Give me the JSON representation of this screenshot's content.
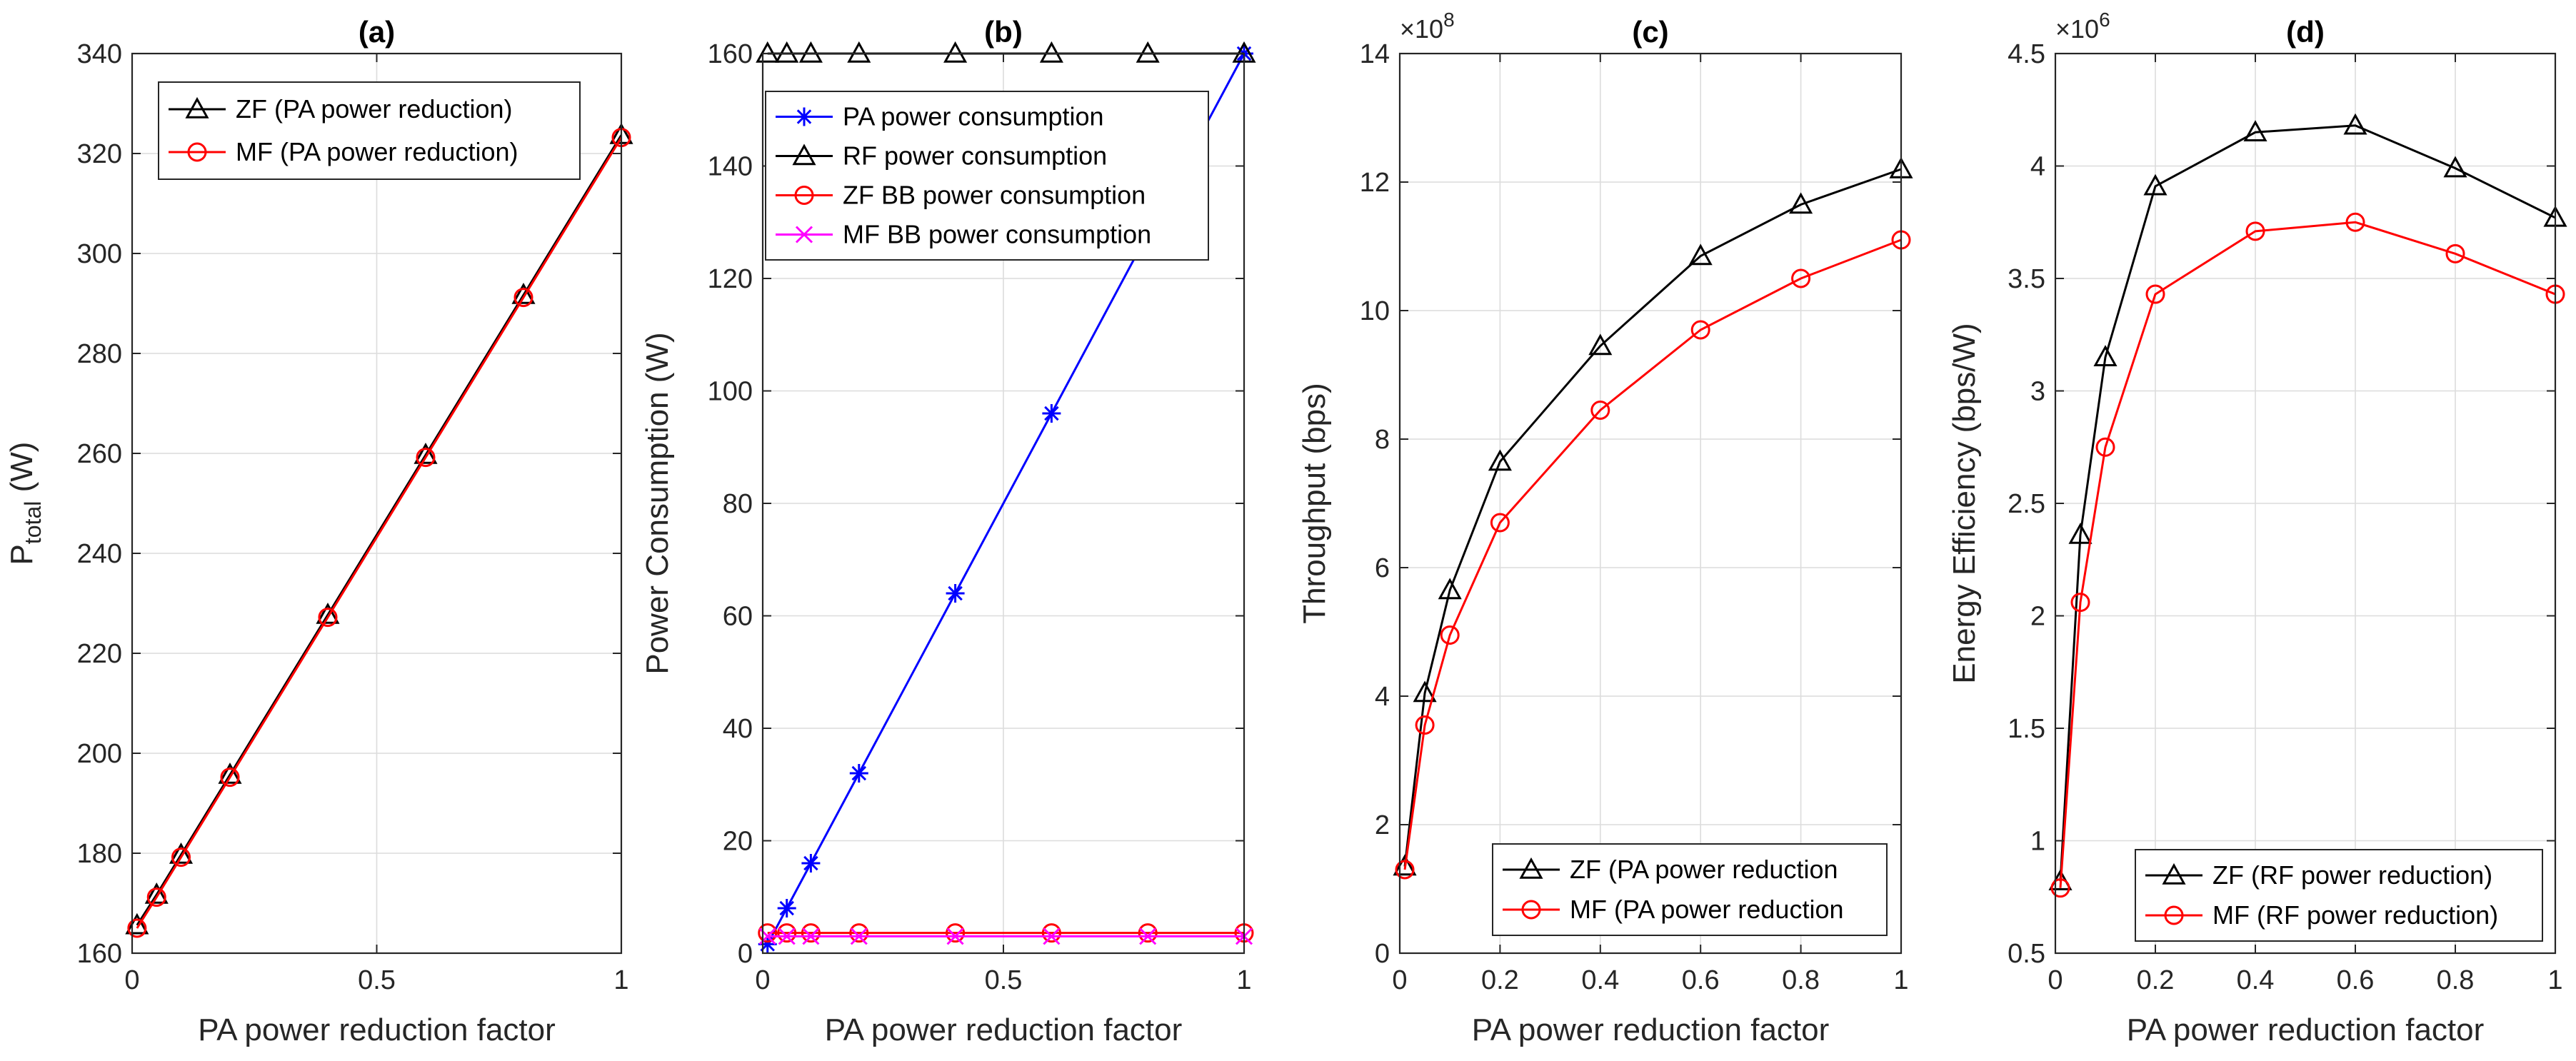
{
  "chart_data": [
    {
      "type": "line",
      "title": "(a)",
      "xlabel": "PA power reduction factor",
      "ylabel_main": "P",
      "ylabel_sub": "total",
      "ylabel_unit": " (W)",
      "xlim": [
        0,
        1
      ],
      "ylim": [
        160,
        340
      ],
      "xticks": [
        0,
        0.5,
        1
      ],
      "xtick_labels": [
        "0",
        "0.5",
        "1"
      ],
      "yticks": [
        160,
        180,
        200,
        220,
        240,
        260,
        280,
        300,
        320,
        340
      ],
      "ytick_labels": [
        "160",
        "180",
        "200",
        "220",
        "240",
        "260",
        "280",
        "300",
        "320",
        "340"
      ],
      "grid": true,
      "legend_position": "top-left",
      "x": [
        0.01,
        0.05,
        0.1,
        0.2,
        0.4,
        0.6,
        0.8,
        1
      ],
      "series": [
        {
          "name": "ZF (PA power reduction)",
          "color": "#000000",
          "marker": "triangle",
          "values": [
            165.6,
            171.7,
            179.7,
            195.7,
            227.7,
            259.7,
            291.7,
            323.7
          ]
        },
        {
          "name": "MF (PA power reduction)",
          "color": "#ff0000",
          "marker": "circle",
          "values": [
            165.0,
            171.2,
            179.2,
            195.2,
            227.2,
            259.2,
            291.2,
            323.2
          ]
        }
      ]
    },
    {
      "type": "line",
      "title": "(b)",
      "xlabel": "PA power reduction factor",
      "ylabel": "Power Consumption (W)",
      "xlim": [
        0,
        1
      ],
      "ylim": [
        0,
        160
      ],
      "xticks": [
        0,
        0.5,
        1
      ],
      "xtick_labels": [
        "0",
        "0.5",
        "1"
      ],
      "yticks": [
        0,
        20,
        40,
        60,
        80,
        100,
        120,
        140,
        160
      ],
      "ytick_labels": [
        "0",
        "20",
        "40",
        "60",
        "80",
        "100",
        "120",
        "140",
        "160"
      ],
      "grid": true,
      "legend_position": "top-left",
      "x": [
        0.01,
        0.05,
        0.1,
        0.2,
        0.4,
        0.6,
        0.8,
        1
      ],
      "series": [
        {
          "name": "PA power consumption",
          "color": "#0000ff",
          "marker": "asterisk",
          "values": [
            1.6,
            8,
            16,
            32,
            64,
            96,
            128,
            160
          ]
        },
        {
          "name": "RF power consumption",
          "color": "#000000",
          "marker": "triangle",
          "values": [
            160,
            160,
            160,
            160,
            160,
            160,
            160,
            160
          ]
        },
        {
          "name": "ZF BB power consumption",
          "color": "#ff0000",
          "marker": "circle",
          "values": [
            3.6,
            3.6,
            3.6,
            3.6,
            3.6,
            3.6,
            3.6,
            3.6
          ]
        },
        {
          "name": "MF BB power consumption",
          "color": "#ff00ff",
          "marker": "x",
          "values": [
            3.0,
            3.0,
            3.0,
            3.0,
            3.0,
            3.0,
            3.0,
            3.0
          ]
        }
      ]
    },
    {
      "type": "line",
      "title": "(c)",
      "xlabel": "PA power reduction factor",
      "ylabel": "Throughput (bps)",
      "exponent_base": "×10",
      "exponent_power": "8",
      "xlim": [
        0,
        1
      ],
      "ylim": [
        0,
        14
      ],
      "xticks": [
        0,
        0.2,
        0.4,
        0.6,
        0.8,
        1
      ],
      "xtick_labels": [
        "0",
        "0.2",
        "0.4",
        "0.6",
        "0.8",
        "1"
      ],
      "yticks": [
        0,
        2,
        4,
        6,
        8,
        10,
        12,
        14
      ],
      "ytick_labels": [
        "0",
        "2",
        "4",
        "6",
        "8",
        "10",
        "12",
        "14"
      ],
      "grid": true,
      "legend_position": "bottom-right",
      "x": [
        0.01,
        0.05,
        0.1,
        0.2,
        0.4,
        0.6,
        0.8,
        1
      ],
      "series": [
        {
          "name": "ZF (PA power reduction",
          "color": "#000000",
          "marker": "triangle",
          "values": [
            1.35,
            4.05,
            5.65,
            7.65,
            9.45,
            10.85,
            11.65,
            12.2
          ]
        },
        {
          "name": "MF (PA power reduction",
          "color": "#ff0000",
          "marker": "circle",
          "values": [
            1.3,
            3.55,
            4.95,
            6.7,
            8.45,
            9.7,
            10.5,
            11.1
          ]
        }
      ]
    },
    {
      "type": "line",
      "title": "(d)",
      "xlabel": "PA power reduction factor",
      "ylabel": "Energy Efficiency (bps/W)",
      "exponent_base": "×10",
      "exponent_power": "6",
      "xlim": [
        0,
        1
      ],
      "ylim": [
        0.5,
        4.5
      ],
      "xticks": [
        0,
        0.2,
        0.4,
        0.6,
        0.8,
        1
      ],
      "xtick_labels": [
        "0",
        "0.2",
        "0.4",
        "0.6",
        "0.8",
        "1"
      ],
      "yticks": [
        0.5,
        1,
        1.5,
        2,
        2.5,
        3,
        3.5,
        4,
        4.5
      ],
      "ytick_labels": [
        "0.5",
        "1",
        "1.5",
        "2",
        "2.5",
        "3",
        "3.5",
        "4",
        "4.5"
      ],
      "grid": true,
      "legend_position": "bottom-right",
      "x": [
        0.01,
        0.05,
        0.1,
        0.2,
        0.4,
        0.6,
        0.8,
        1
      ],
      "series": [
        {
          "name": "ZF (RF power reduction)",
          "color": "#000000",
          "marker": "triangle",
          "values": [
            0.82,
            2.36,
            3.15,
            3.91,
            4.15,
            4.18,
            3.99,
            3.77
          ]
        },
        {
          "name": "MF (RF power reduction)",
          "color": "#ff0000",
          "marker": "circle",
          "values": [
            0.79,
            2.06,
            2.75,
            3.43,
            3.71,
            3.75,
            3.61,
            3.43
          ]
        }
      ]
    }
  ]
}
